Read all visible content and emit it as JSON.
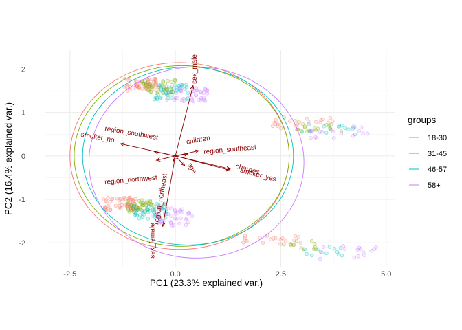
{
  "chart_data": {
    "type": "scatter",
    "title": "",
    "xlabel": "PC1 (23.3% explained var.)",
    "ylabel": "PC2 (16.4% explained var.)",
    "xlim": [
      -3.1,
      5.2
    ],
    "ylim": [
      -2.55,
      2.45
    ],
    "x_ticks": [
      -2.5,
      0.0,
      2.5,
      5.0
    ],
    "x_tick_labels": [
      "-2.5",
      "0.0",
      "2.5",
      "5.0"
    ],
    "y_ticks": [
      -2,
      -1,
      0,
      1,
      2
    ],
    "y_tick_labels": [
      "-2",
      "-1",
      "0",
      "1",
      "2"
    ],
    "grid": true,
    "legend": {
      "title": "groups",
      "placement": "right",
      "entries": [
        "18-30",
        "31-45",
        "46-57",
        "58+"
      ]
    },
    "colors": {
      "18-30": "#f8766d",
      "31-45": "#7cae00",
      "46-57": "#00bfc4",
      "58+": "#c77cff",
      "arrow": "#8b0000"
    },
    "point_clusters": [
      {
        "group": "18-30",
        "x": [
          -1.2,
          -0.4
        ],
        "y": [
          1.5,
          1.8
        ],
        "n": 55
      },
      {
        "group": "31-45",
        "x": [
          -0.8,
          0.0
        ],
        "y": [
          1.4,
          1.75
        ],
        "n": 45
      },
      {
        "group": "46-57",
        "x": [
          -0.5,
          0.3
        ],
        "y": [
          1.3,
          1.65
        ],
        "n": 40
      },
      {
        "group": "58+",
        "x": [
          -0.2,
          0.8
        ],
        "y": [
          1.25,
          1.6
        ],
        "n": 40
      },
      {
        "group": "18-30",
        "x": [
          -1.7,
          -0.9
        ],
        "y": [
          -1.25,
          -0.95
        ],
        "n": 60
      },
      {
        "group": "31-45",
        "x": [
          -1.2,
          -0.5
        ],
        "y": [
          -1.3,
          -1.0
        ],
        "n": 45
      },
      {
        "group": "46-57",
        "x": [
          -1.0,
          -0.2
        ],
        "y": [
          -1.45,
          -1.1
        ],
        "n": 45
      },
      {
        "group": "58+",
        "x": [
          -0.5,
          0.4
        ],
        "y": [
          -1.6,
          -1.2
        ],
        "n": 40
      },
      {
        "group": "18-30",
        "x": [
          2.3,
          3.8
        ],
        "y": [
          0.6,
          0.9
        ],
        "n": 25
      },
      {
        "group": "31-45",
        "x": [
          2.9,
          4.0
        ],
        "y": [
          0.55,
          0.8
        ],
        "n": 15
      },
      {
        "group": "46-57",
        "x": [
          3.0,
          4.3
        ],
        "y": [
          0.45,
          0.75
        ],
        "n": 15
      },
      {
        "group": "58+",
        "x": [
          3.2,
          4.7
        ],
        "y": [
          0.4,
          0.7
        ],
        "n": 18
      },
      {
        "group": "18-30",
        "x": [
          1.6,
          3.0
        ],
        "y": [
          -2.05,
          -1.8
        ],
        "n": 20
      },
      {
        "group": "31-45",
        "x": [
          2.5,
          3.4
        ],
        "y": [
          -2.15,
          -1.95
        ],
        "n": 12
      },
      {
        "group": "46-57",
        "x": [
          3.0,
          4.0
        ],
        "y": [
          -2.3,
          -2.05
        ],
        "n": 12
      },
      {
        "group": "58+",
        "x": [
          3.3,
          4.9
        ],
        "y": [
          -2.4,
          -2.05
        ],
        "n": 15
      }
    ],
    "ellipses": [
      {
        "group": "18-30",
        "cx": 0.1,
        "cy": 0.0,
        "rx": 2.6,
        "ry": 2.15
      },
      {
        "group": "31-45",
        "cx": 0.15,
        "cy": 0.0,
        "rx": 2.55,
        "ry": 2.08
      },
      {
        "group": "46-57",
        "cx": 0.3,
        "cy": 0.0,
        "rx": 2.5,
        "ry": 2.05
      },
      {
        "group": "58+",
        "cx": 0.5,
        "cy": -0.15,
        "rx": 2.55,
        "ry": 2.2
      }
    ],
    "loadings": [
      {
        "name": "sex_male",
        "x": 0.42,
        "y": 1.62
      },
      {
        "name": "sex_female",
        "x": -0.3,
        "y": -1.62
      },
      {
        "name": "smoker_no",
        "x": -1.3,
        "y": 0.28
      },
      {
        "name": "smoker_yes",
        "x": 1.3,
        "y": -0.3
      },
      {
        "name": "region_southwest",
        "x": -0.5,
        "y": 0.1
      },
      {
        "name": "region_northwest",
        "x": -0.45,
        "y": -0.1
      },
      {
        "name": "region_southeast",
        "x": 0.55,
        "y": 0.12
      },
      {
        "name": "region_northeast",
        "x": -0.05,
        "y": -0.12
      },
      {
        "name": "children",
        "x": 0.3,
        "y": 0.05
      },
      {
        "name": "age",
        "x": 0.22,
        "y": -0.22
      },
      {
        "name": "charges",
        "x": 1.3,
        "y": -0.33
      }
    ],
    "loading_labels": [
      {
        "name": "sex_male",
        "x": 0.5,
        "y": 2.0,
        "rot": -90
      },
      {
        "name": "sex_female",
        "x": -0.5,
        "y": -1.95,
        "rot": -90
      },
      {
        "name": "smoker_no",
        "x": -1.85,
        "y": 0.38,
        "rot": 10
      },
      {
        "name": "smoker_yes",
        "x": 1.95,
        "y": -0.48,
        "rot": 15
      },
      {
        "name": "region_southwest",
        "x": -1.05,
        "y": 0.48,
        "rot": 10
      },
      {
        "name": "region_northwest",
        "x": -1.05,
        "y": -0.6,
        "rot": -5
      },
      {
        "name": "region_southeast",
        "x": 1.3,
        "y": 0.1,
        "rot": -5
      },
      {
        "name": "region_northeast",
        "x": -0.3,
        "y": -1.0,
        "rot": -80
      },
      {
        "name": "children",
        "x": 0.55,
        "y": 0.32,
        "rot": -10
      },
      {
        "name": "age",
        "x": 0.35,
        "y": -0.3,
        "rot": 60
      },
      {
        "name": "charges",
        "x": 1.7,
        "y": -0.35,
        "rot": 15
      }
    ]
  }
}
